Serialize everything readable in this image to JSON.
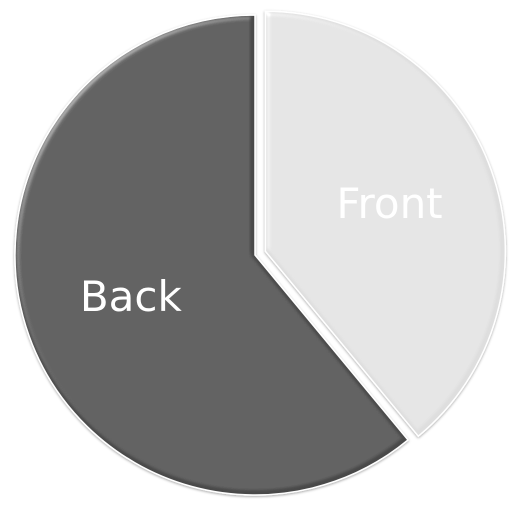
{
  "chart_data": {
    "type": "pie",
    "title": "",
    "slices": [
      {
        "label": "Back",
        "value": 61,
        "color": "#4a4a4a",
        "exploded": false
      },
      {
        "label": "Front",
        "value": 39,
        "color": "#dedede",
        "exploded": true
      }
    ],
    "start_angle_deg": 0,
    "direction": "counterclockwise",
    "legend": "none",
    "labels_inside": true
  }
}
